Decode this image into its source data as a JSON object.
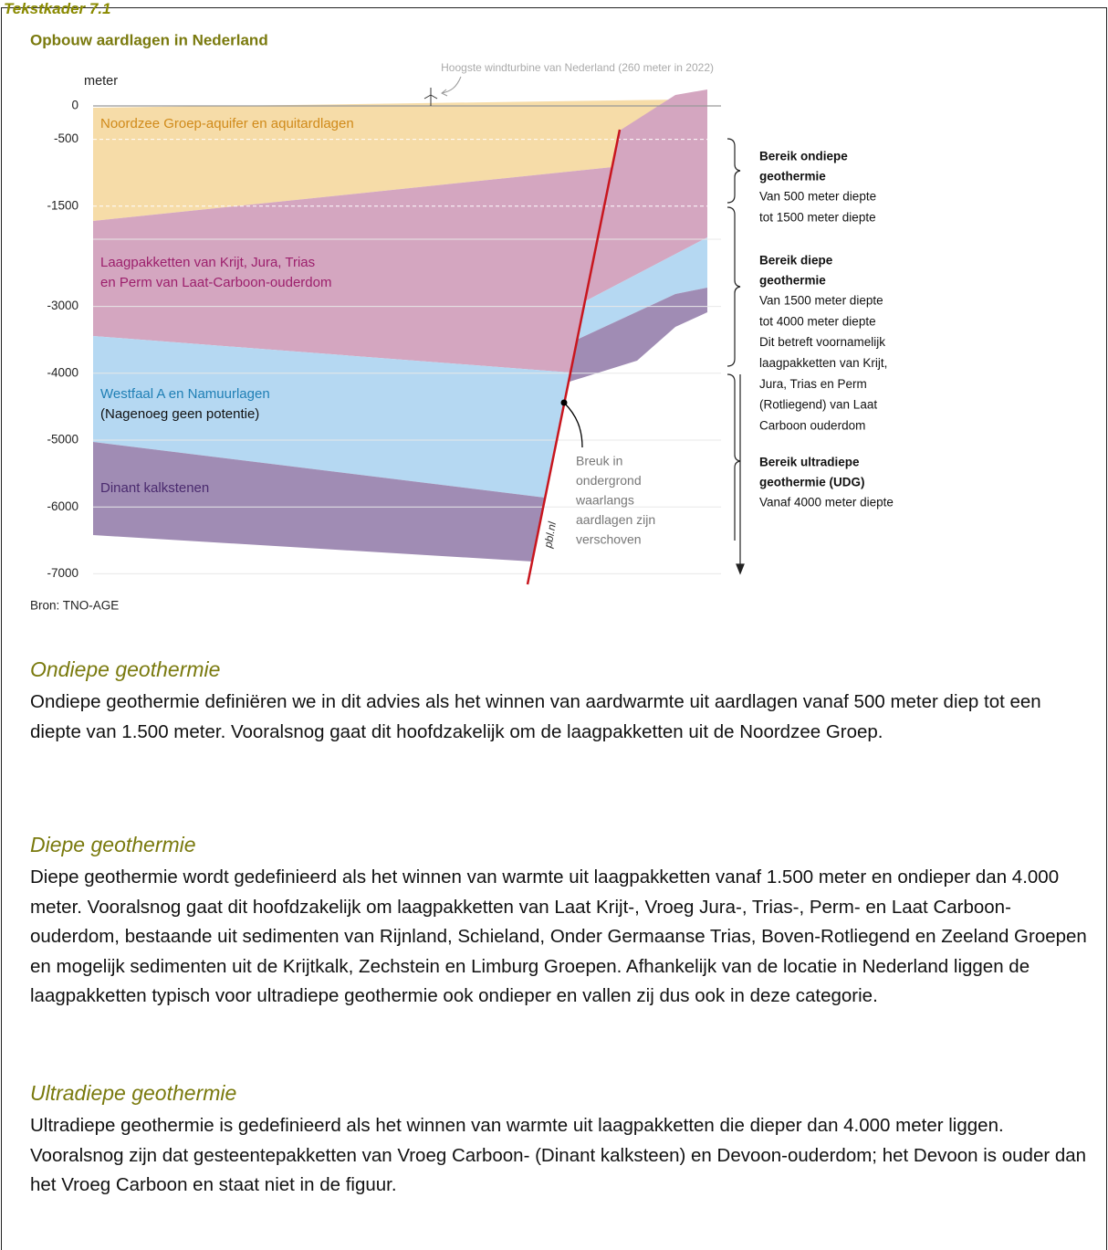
{
  "header": {
    "label": "Tekstkader 7.1"
  },
  "figure": {
    "title": "Opbouw aardlagen in Nederland",
    "y_unit": "meter",
    "turbine_note": "Hoogste windturbine van Nederland (260 meter in 2022)",
    "yticks": [
      "0",
      "-500",
      "-1500",
      "-3000",
      "-4000",
      "-5000",
      "-6000",
      "-7000"
    ],
    "layers": [
      {
        "lines": [
          "Noordzee Groep-aquifer en aquitardlagen"
        ]
      },
      {
        "lines": [
          "Laagpakketten van Krijt, Jura, Trias",
          "en Perm van Laat-Carboon-ouderdom"
        ]
      },
      {
        "lines": [
          "Westfaal A en Namuurlagen",
          "(Nagenoeg geen potentie)"
        ]
      },
      {
        "lines": [
          "Dinant kalkstenen"
        ]
      }
    ],
    "fault_note": [
      "Breuk in",
      "ondergrond",
      "waarlangs",
      "aardlagen zijn",
      "verschoven"
    ],
    "watermark": "pbl.nl",
    "ranges": [
      {
        "title": [
          "Bereik ondiepe",
          "geothermie"
        ],
        "lines": [
          "Van 500 meter diepte",
          "tot 1500 meter diepte"
        ]
      },
      {
        "title": [
          "Bereik diepe",
          "geothermie"
        ],
        "lines": [
          "Van 1500 meter diepte",
          "tot 4000 meter diepte",
          "Dit betreft voornamelijk",
          "laagpakketten van Krijt,",
          "Jura, Trias en Perm",
          "(Rotliegend) van Laat",
          "Carboon ouderdom"
        ]
      },
      {
        "title": [
          "Bereik ultradiepe",
          "geothermie (UDG)"
        ],
        "lines": [
          "Vanaf 4000 meter diepte"
        ]
      }
    ],
    "source": "Bron: TNO-AGE"
  },
  "sections": [
    {
      "heading": "Ondiepe geothermie",
      "text": "Ondiepe geothermie definiëren we in dit advies als het winnen van aardwarmte uit aardlagen vanaf 500 meter diep tot een diepte van 1.500 meter. Vooralsnog gaat dit hoofdzakelijk om de laagpakketten uit de Noordzee Groep."
    },
    {
      "heading": "Diepe geothermie",
      "text": "Diepe geothermie wordt gedefinieerd als het winnen van warmte uit laagpakketten vanaf 1.500 meter en ondieper dan 4.000 meter. Vooralsnog gaat dit hoofdzakelijk om laagpakketten van Laat Krijt-, Vroeg Jura-, Trias-, Perm- en Laat Carboon-ouderdom, bestaande uit sedimenten van Rijnland, Schieland, Onder Germaanse Trias, Boven-Rotliegend en Zeeland Groepen en mogelijk sedimenten uit de Krijtkalk, Zechstein en Limburg Groepen. Afhankelijk van de locatie in Nederland liggen de laagpakketten typisch voor ultradiepe geothermie ook ondieper en vallen zij dus ook in deze categorie."
    },
    {
      "heading": "Ultradiepe geothermie",
      "text": "Ultradiepe geothermie is gedefinieerd als het winnen van warmte uit laagpakketten die dieper dan 4.000 meter liggen. Vooralsnog zijn dat gesteentepakketten van Vroeg Carboon- (Dinant kalksteen) en Devoon-ouderdom; het Devoon is ouder dan het Vroeg Carboon en staat niet in de figuur."
    }
  ]
}
